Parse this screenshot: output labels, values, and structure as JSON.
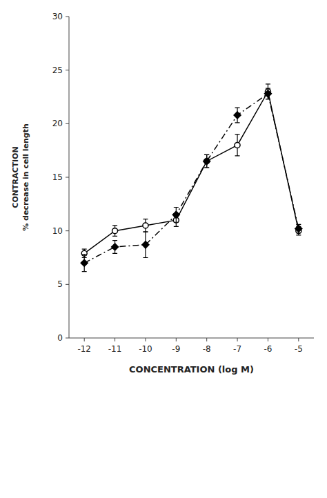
{
  "chart_data": {
    "type": "line",
    "xlabel": "CONCENTRATION (log M)",
    "ylabel": "CONTRACTION\n% decrease in cell length",
    "x": [
      -12,
      -11,
      -10,
      -9,
      -8,
      -7,
      -6,
      -5
    ],
    "xlim": [
      -12.5,
      -4.5
    ],
    "xticks": [
      -12,
      -11,
      -10,
      -9,
      -8,
      -7,
      -6,
      -5
    ],
    "ylim": [
      0,
      30
    ],
    "yticks": [
      0,
      5,
      10,
      15,
      20,
      25,
      30
    ],
    "grid": false,
    "series": [
      {
        "color": "#000000",
        "marker": "circle-open",
        "line_style": "solid",
        "values": [
          7.9,
          10.0,
          10.5,
          11.0,
          16.5,
          18.0,
          23.0,
          10.0
        ],
        "errors": [
          0.4,
          0.5,
          0.6,
          0.6,
          0.6,
          1.0,
          0.7,
          0.4
        ]
      },
      {
        "color": "#000000",
        "marker": "diamond",
        "line_style": "dashdot",
        "values": [
          7.0,
          8.5,
          8.7,
          11.5,
          16.5,
          20.8,
          22.8,
          10.2
        ],
        "errors": [
          0.8,
          0.6,
          1.2,
          0.7,
          0.6,
          0.7,
          0.5,
          0.4
        ]
      }
    ]
  }
}
